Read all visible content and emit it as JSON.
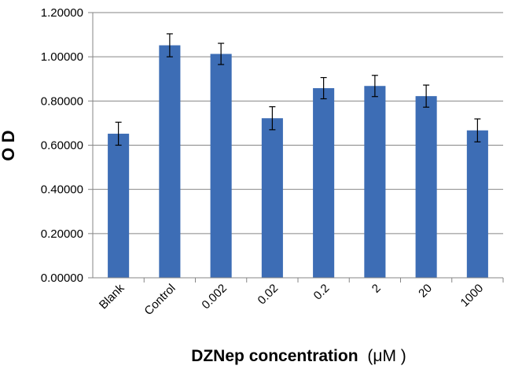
{
  "chart_data": {
    "type": "bar",
    "title": "",
    "xlabel_bold": "DZNep concentration",
    "xlabel_unit": "(μM )",
    "ylabel": "O D",
    "categories": [
      "Blank",
      "Control",
      "0.002",
      "0.02",
      "0.2",
      "2",
      "20",
      "1000"
    ],
    "values": [
      0.652,
      1.052,
      1.013,
      0.722,
      0.858,
      0.868,
      0.822,
      0.667
    ],
    "errors": [
      0.052,
      0.052,
      0.048,
      0.052,
      0.048,
      0.048,
      0.05,
      0.052
    ],
    "ylim": [
      0,
      1.2
    ],
    "yticks": [
      "0.00000",
      "0.20000",
      "0.40000",
      "0.60000",
      "0.80000",
      "1.00000",
      "1.20000"
    ],
    "grid": true,
    "colors": {
      "bar": "#3D6DB5",
      "grid": "#868686",
      "axis": "#868686",
      "error": "#000000"
    }
  }
}
